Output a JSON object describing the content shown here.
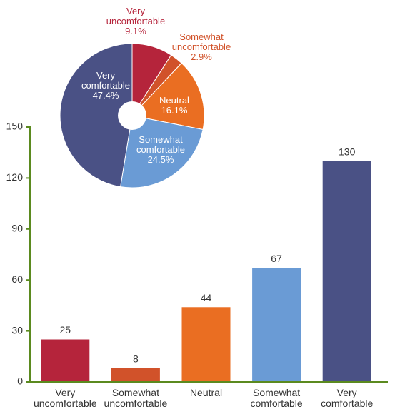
{
  "chart_data": [
    {
      "type": "bar",
      "categories": [
        "Very uncomfortable",
        "Somewhat uncomfortable",
        "Neutral",
        "Somewhat comfortable",
        "Very comfortable"
      ],
      "values": [
        25,
        8,
        44,
        67,
        130
      ],
      "colors": [
        "#b5243b",
        "#d1522a",
        "#ea6e22",
        "#6a9bd5",
        "#4a5185"
      ],
      "ylim": [
        0,
        150
      ],
      "yticks": [
        0,
        30,
        60,
        90,
        120,
        150
      ],
      "axis_color": "#5b8a1f"
    },
    {
      "type": "pie",
      "categories": [
        "Very uncomfortable",
        "Somewhat uncomfortable",
        "Neutral",
        "Somewhat comfortable",
        "Very comfortable"
      ],
      "values": [
        9.1,
        2.9,
        16.1,
        24.5,
        47.4
      ],
      "value_labels": [
        "9.1%",
        "2.9%",
        "16.1%",
        "24.5%",
        "47.4%"
      ],
      "colors": [
        "#b5243b",
        "#d1522a",
        "#ea6e22",
        "#6a9bd5",
        "#4a5185"
      ]
    }
  ]
}
